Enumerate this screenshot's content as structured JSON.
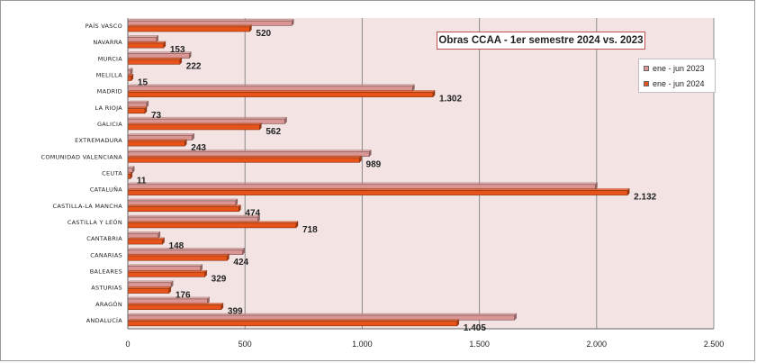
{
  "chart_data": {
    "type": "bar",
    "orientation": "horizontal",
    "title": "Obras CCAA - 1er semestre 2024 vs. 2023",
    "categories": [
      "PAÍS VASCO",
      "NAVARRA",
      "MURCIA",
      "MELILLA",
      "MADRID",
      "LA RIOJA",
      "GALICIA",
      "EXTREMADURA",
      "COMUNIDAD VALENCIANA",
      "CEUTA",
      "CATALUÑA",
      "CASTILLA-LA MANCHA",
      "CASTILLA Y LEÓN",
      "CANTABRIA",
      "CANARIAS",
      "BALEARES",
      "ASTURIAS",
      "ARAGÓN",
      "ANDALUCÍA"
    ],
    "series": [
      {
        "name": "ene - jun 2023",
        "color": "#d99694",
        "values": [
          700,
          122,
          262,
          12,
          1215,
          80,
          670,
          275,
          1030,
          20,
          1995,
          460,
          555,
          130,
          490,
          310,
          185,
          340,
          1650
        ]
      },
      {
        "name": "ene - jun 2024",
        "color": "#e8531a",
        "values": [
          520,
          153,
          222,
          15,
          1302,
          73,
          562,
          243,
          989,
          11,
          2132,
          474,
          718,
          148,
          424,
          329,
          176,
          399,
          1405
        ]
      }
    ],
    "data_labels": [
      "520",
      "153",
      "222",
      "15",
      "1.302",
      "73",
      "562",
      "243",
      "989",
      "11",
      "2.132",
      "474",
      "718",
      "148",
      "424",
      "329",
      "176",
      "399",
      "1.405"
    ],
    "xlim": [
      0,
      2500
    ],
    "xticks": [
      0,
      500,
      1000,
      1500,
      2000,
      2500
    ],
    "xtick_labels": [
      "0",
      "500",
      "1.000",
      "1.500",
      "2.000",
      "2.500"
    ],
    "grid": true,
    "legend_position": "top-right",
    "plot_background": "#f3e3e3"
  }
}
